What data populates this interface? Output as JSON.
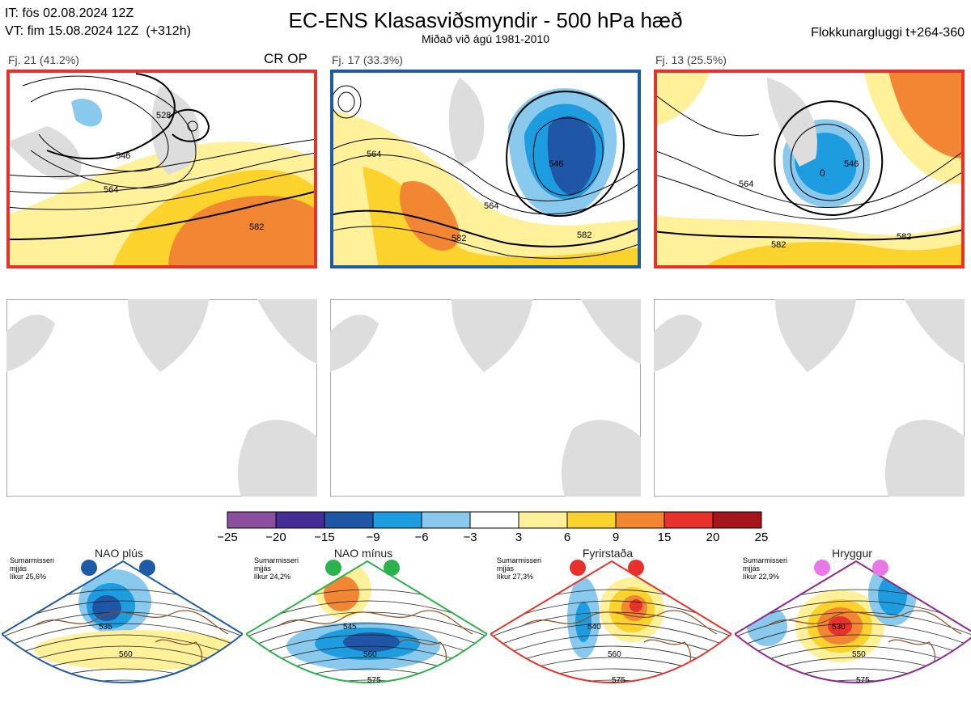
{
  "header": {
    "it_line": "IT: fös 02.08.2024 12Z",
    "vt_line": "VT: fim 15.08.2024 12Z  (+312h)",
    "title": "EC-ENS Klasasviðsmyndir - 500 hPa hæð",
    "subtitle": "Miðað við ágú 1981-2010",
    "window": "Flokkunargluggi t+264-360"
  },
  "clusters": [
    {
      "label": "Fj. 21 (41.2%)",
      "extra": "CR OP",
      "border_color": "#e8312a",
      "contours": [
        "546",
        "564",
        "582",
        "528"
      ]
    },
    {
      "label": "Fj. 17 (33.3%)",
      "extra": "",
      "border_color": "#1f5aa6",
      "contours": [
        "564",
        "546",
        "564",
        "582",
        "582"
      ]
    },
    {
      "label": "Fj. 13 (25.5%)",
      "extra": "",
      "border_color": "#e8312a",
      "contours": [
        "564",
        "546",
        "582",
        "582",
        "0"
      ]
    }
  ],
  "colorbar": {
    "ticks": [
      "−25",
      "−20",
      "−15",
      "−9",
      "−6",
      "−3",
      "3",
      "6",
      "9",
      "15",
      "20",
      "25"
    ],
    "colors": [
      "#8c4fa0",
      "#442d96",
      "#1f56a6",
      "#1e9ce0",
      "#8ac9ee",
      "#ffffff",
      "#fff09a",
      "#fcd22d",
      "#f38632",
      "#e8312a",
      "#a6151c"
    ]
  },
  "regimes": [
    {
      "name": "NAO plús",
      "info": [
        "Sumarmisseri",
        "mjjás",
        "líkur 25,6%"
      ],
      "dot_color": "#1f5aa6",
      "frame_color": "#1f5aa6",
      "contours": [
        "535",
        "560"
      ]
    },
    {
      "name": "NAO mínus",
      "info": [
        "Sumarmisseri",
        "mjjás",
        "líkur 24,2%"
      ],
      "dot_color": "#2bb24c",
      "frame_color": "#2bb24c",
      "contours": [
        "545",
        "560",
        "575"
      ]
    },
    {
      "name": "Fyrirstaða",
      "info": [
        "Sumarmisseri",
        "mjjás",
        "líkur 27,3%"
      ],
      "dot_color": "#e8312a",
      "frame_color": "#e8312a",
      "contours": [
        "540",
        "560",
        "575"
      ]
    },
    {
      "name": "Hryggur",
      "info": [
        "Sumarmisseri",
        "mjjás",
        "líkur 22,9%"
      ],
      "dot_color": "#e878e8",
      "frame_color": "#8e2a8e",
      "contours": [
        "530",
        "550",
        "575"
      ]
    }
  ]
}
